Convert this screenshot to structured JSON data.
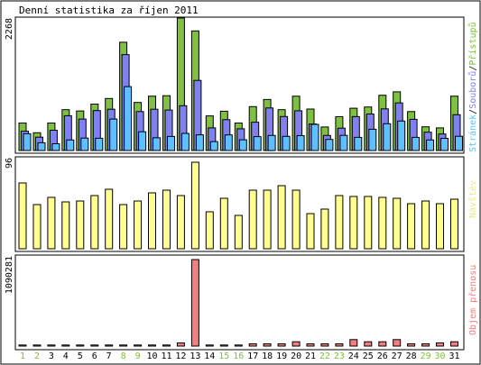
{
  "title": "Denní statistika za říjen 2011",
  "colors": {
    "hits": "#80c040",
    "files": "#8080f0",
    "pages": "#60c0ff",
    "visits": "#ffff90",
    "volume": "#f08080",
    "weekend_label": "#80c040",
    "weekday_label": "#000000",
    "frame": "#000000",
    "background": "#ffffff"
  },
  "chart_data": [
    {
      "type": "bar",
      "panel": "top",
      "y_max_label": "2268",
      "ylim": [
        0,
        2268
      ],
      "legend": {
        "position": "right-vertical",
        "items": [
          {
            "key": "pages",
            "text": "Stránek"
          },
          {
            "key": "files",
            "text": "Souborů"
          },
          {
            "key": "hits",
            "text": "Přístupů"
          }
        ],
        "separator": "/"
      },
      "categories": [
        "1",
        "2",
        "3",
        "4",
        "5",
        "6",
        "7",
        "8",
        "9",
        "10",
        "11",
        "12",
        "13",
        "14",
        "15",
        "16",
        "17",
        "18",
        "19",
        "20",
        "21",
        "22",
        "23",
        "24",
        "25",
        "26",
        "27",
        "28",
        "29",
        "30",
        "31"
      ],
      "series": [
        {
          "name": "Přístupů",
          "key": "hits",
          "values": [
            471,
            304,
            471,
            699,
            677,
            794,
            890,
            1853,
            823,
            931,
            938,
            2268,
            2048,
            592,
            673,
            471,
            752,
            874,
            699,
            931,
            709,
            402,
            579,
            723,
            745,
            946,
            1005,
            666,
            406,
            388,
            931
          ]
        },
        {
          "name": "Souborů",
          "key": "files",
          "values": [
            330,
            229,
            347,
            596,
            539,
            684,
            707,
            1642,
            667,
            707,
            693,
            767,
            1201,
            387,
            528,
            372,
            485,
            729,
            582,
            681,
            453,
            257,
            382,
            580,
            625,
            713,
            815,
            534,
            313,
            282,
            612
          ]
        },
        {
          "name": "Stránek",
          "key": "pages",
          "values": [
            287,
            132,
            115,
            180,
            213,
            210,
            538,
            1094,
            321,
            218,
            240,
            293,
            269,
            153,
            267,
            184,
            237,
            258,
            242,
            254,
            447,
            190,
            259,
            226,
            364,
            458,
            505,
            225,
            181,
            208,
            244
          ]
        }
      ]
    },
    {
      "type": "bar",
      "panel": "middle",
      "y_max_label": "96",
      "ylim": [
        0,
        96
      ],
      "legend": {
        "position": "right-vertical",
        "items": [
          {
            "key": "visits",
            "text": "Návštěv"
          }
        ]
      },
      "categories": [
        "1",
        "2",
        "3",
        "4",
        "5",
        "6",
        "7",
        "8",
        "9",
        "10",
        "11",
        "12",
        "13",
        "14",
        "15",
        "16",
        "17",
        "18",
        "19",
        "20",
        "21",
        "22",
        "23",
        "24",
        "25",
        "26",
        "27",
        "28",
        "29",
        "30",
        "31"
      ],
      "series": [
        {
          "name": "Návštěv",
          "key": "visits",
          "values": [
            73,
            49,
            57,
            52,
            53,
            59,
            66,
            49,
            53,
            62,
            65,
            59,
            96,
            41,
            56,
            37,
            65,
            65,
            70,
            65,
            39,
            44,
            59,
            58,
            58,
            57,
            56,
            50,
            53,
            50,
            55
          ]
        }
      ]
    },
    {
      "type": "bar",
      "panel": "bottom",
      "y_max_label": "1090281",
      "ylim": [
        0,
        1090281
      ],
      "legend": {
        "position": "right-vertical",
        "items": [
          {
            "key": "volume",
            "text": "Objem přenosu"
          }
        ]
      },
      "categories": [
        "1",
        "2",
        "3",
        "4",
        "5",
        "6",
        "7",
        "8",
        "9",
        "10",
        "11",
        "12",
        "13",
        "14",
        "15",
        "16",
        "17",
        "18",
        "19",
        "20",
        "21",
        "22",
        "23",
        "24",
        "25",
        "26",
        "27",
        "28",
        "29",
        "30",
        "31"
      ],
      "series": [
        {
          "name": "Objem přenosu",
          "key": "volume",
          "values": [
            14000,
            14000,
            14000,
            14000,
            14000,
            14000,
            14000,
            14000,
            14000,
            14000,
            14000,
            40000,
            1090281,
            14000,
            14000,
            14000,
            28000,
            28000,
            28000,
            55000,
            28000,
            28000,
            28000,
            82000,
            55000,
            55000,
            82000,
            28000,
            28000,
            40000,
            55000
          ]
        }
      ]
    }
  ],
  "day_labels": [
    {
      "text": "1",
      "weekend": true
    },
    {
      "text": "2",
      "weekend": true
    },
    {
      "text": "3",
      "weekend": false
    },
    {
      "text": "4",
      "weekend": false
    },
    {
      "text": "5",
      "weekend": false
    },
    {
      "text": "6",
      "weekend": false
    },
    {
      "text": "7",
      "weekend": false
    },
    {
      "text": "8",
      "weekend": true
    },
    {
      "text": "9",
      "weekend": true
    },
    {
      "text": "10",
      "weekend": false
    },
    {
      "text": "11",
      "weekend": false
    },
    {
      "text": "12",
      "weekend": false
    },
    {
      "text": "13",
      "weekend": false
    },
    {
      "text": "14",
      "weekend": false
    },
    {
      "text": "15",
      "weekend": true
    },
    {
      "text": "16",
      "weekend": true
    },
    {
      "text": "17",
      "weekend": false
    },
    {
      "text": "18",
      "weekend": false
    },
    {
      "text": "19",
      "weekend": false
    },
    {
      "text": "20",
      "weekend": false
    },
    {
      "text": "21",
      "weekend": false
    },
    {
      "text": "22",
      "weekend": true
    },
    {
      "text": "23",
      "weekend": true
    },
    {
      "text": "24",
      "weekend": false
    },
    {
      "text": "25",
      "weekend": false
    },
    {
      "text": "26",
      "weekend": false
    },
    {
      "text": "27",
      "weekend": false
    },
    {
      "text": "28",
      "weekend": false
    },
    {
      "text": "29",
      "weekend": true
    },
    {
      "text": "30",
      "weekend": true
    },
    {
      "text": "31",
      "weekend": false
    }
  ]
}
